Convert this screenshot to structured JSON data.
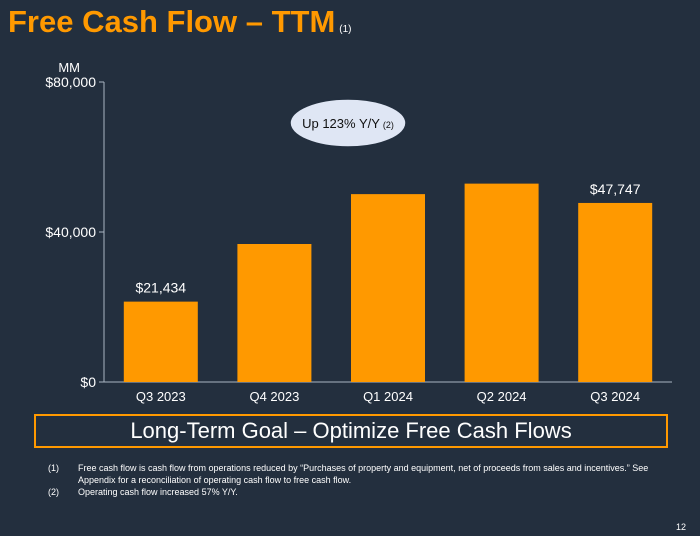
{
  "title": "Free Cash Flow – TTM",
  "title_footnote": "(1)",
  "chart_data": {
    "type": "bar",
    "unit_label": "MM",
    "categories": [
      "Q3 2023",
      "Q4 2023",
      "Q1 2024",
      "Q2 2024",
      "Q3 2024"
    ],
    "values": [
      21434,
      36800,
      50100,
      52900,
      47747
    ],
    "data_labels": [
      "$21,434",
      "",
      "",
      "",
      "$47,747"
    ],
    "ylim": [
      0,
      80000
    ],
    "y_ticks": [
      0,
      40000,
      80000
    ],
    "y_tick_labels": [
      "$0",
      "$40,000",
      "$80,000"
    ],
    "grid": false,
    "bar_color": "#ff9900",
    "callout": {
      "text": "Up 123% Y/Y",
      "footnote": "(2)"
    }
  },
  "goal_text": "Long-Term Goal – Optimize Free Cash Flows",
  "footnotes": [
    {
      "num": "(1)",
      "text": "Free cash flow is cash flow from operations reduced by “Purchases of property and equipment, net of proceeds from sales and incentives.” See Appendix for a reconciliation of operating cash flow to free cash flow."
    },
    {
      "num": "(2)",
      "text": "Operating cash flow increased 57% Y/Y."
    }
  ],
  "page_number": "12",
  "colors": {
    "background": "#232f3e",
    "accent": "#ff9900",
    "callout_fill": "#dfe6f4"
  }
}
